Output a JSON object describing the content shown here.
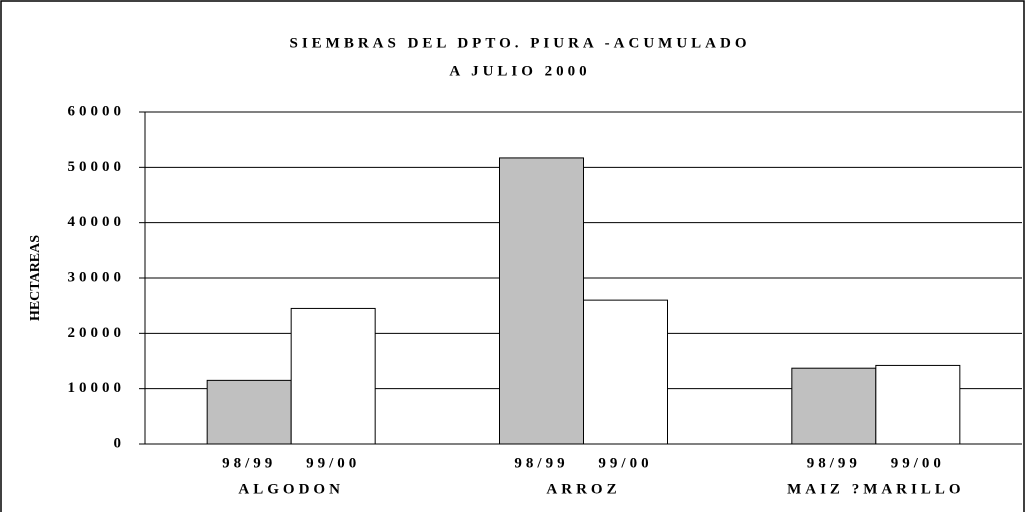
{
  "chart_data": {
    "type": "bar",
    "title": "SIEMBRAS DEL DPTO. PIURA -ACUMULADO",
    "subtitle": "A JULIO 2000",
    "y_label": "HECTAREAS",
    "categories": [
      "ALGODON",
      "ARROZ",
      "MAIZ ?MARILLO"
    ],
    "series": [
      {
        "name": "98/99",
        "color": "#c0c0c0",
        "values": [
          11500,
          51700,
          13700
        ]
      },
      {
        "name": "99/00",
        "color": "#ffffff",
        "values": [
          24500,
          26000,
          14200
        ]
      }
    ],
    "ylim": [
      0,
      60000
    ],
    "yticks": [
      0,
      10000,
      20000,
      30000,
      40000,
      50000,
      60000
    ],
    "grid": true
  }
}
